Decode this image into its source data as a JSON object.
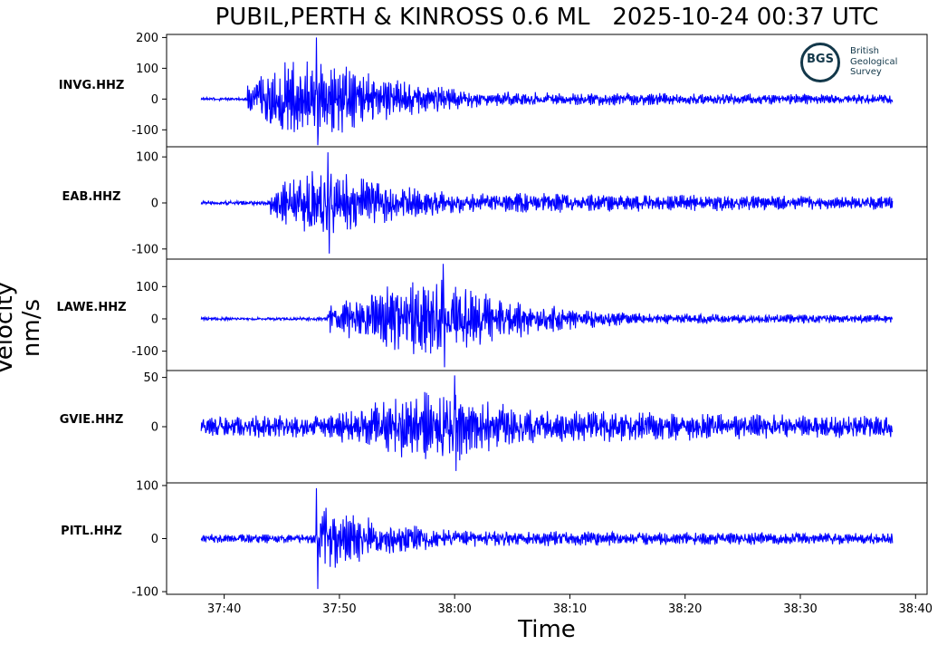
{
  "title": "PUBIL,PERTH & KINROSS 0.6 ML   2025-10-24 00:37 UTC",
  "ylabel": "Velocity nm/s",
  "xlabel": "Time",
  "logo": {
    "abbr": "BGS",
    "lines": [
      "British",
      "Geological",
      "Survey"
    ]
  },
  "colors": {
    "trace": "#0000ff",
    "axes": "#000000",
    "logo": "#13384a"
  },
  "chart_data": {
    "type": "line",
    "x_unit": "time (mm:ss)",
    "xlim": [
      "37:35",
      "38:41"
    ],
    "x_tick_labels": [
      "37:40",
      "37:50",
      "38:00",
      "38:10",
      "38:20",
      "38:30",
      "38:40"
    ],
    "trace_span": [
      "37:38",
      "38:38"
    ],
    "series": [
      {
        "name": "INVG.HHZ",
        "ylim": [
          -155,
          210
        ],
        "y_ticks": [
          200,
          100,
          0,
          -100
        ],
        "y_tick_labels": [
          "200",
          "100",
          "0",
          "-100"
        ],
        "noise_before": 4,
        "onset": "37:42",
        "peak_time": "37:48",
        "peak": 200,
        "min": -150,
        "coda": 18
      },
      {
        "name": "EAB.HHZ",
        "ylim": [
          -122,
          122
        ],
        "y_ticks": [
          100,
          0,
          -100
        ],
        "y_tick_labels": [
          "100",
          "0",
          "-100"
        ],
        "noise_before": 4,
        "onset": "37:44",
        "peak_time": "37:49",
        "peak": 110,
        "min": -110,
        "coda": 16
      },
      {
        "name": "LAWE.HHZ",
        "ylim": [
          -160,
          185
        ],
        "y_ticks": [
          100,
          0,
          -100
        ],
        "y_tick_labels": [
          "100",
          "0",
          "-100"
        ],
        "noise_before": 4,
        "onset": "37:49",
        "peak_time": "37:59",
        "peak": 170,
        "min": -150,
        "coda": 12
      },
      {
        "name": "GVIE.HHZ",
        "ylim": [
          -57,
          57
        ],
        "y_ticks": [
          50,
          0
        ],
        "y_tick_labels": [
          "50",
          "0"
        ],
        "noise_before": 9,
        "onset": "37:50",
        "peak_time": "38:00",
        "peak": 52,
        "min": -45,
        "coda": 10
      },
      {
        "name": "PITL.HHZ",
        "ylim": [
          -105,
          105
        ],
        "y_ticks": [
          100,
          0,
          -100
        ],
        "y_tick_labels": [
          "100",
          "0",
          "-100"
        ],
        "noise_before": 7,
        "onset": "37:48",
        "peak_time": "37:48",
        "peak": 95,
        "min": -95,
        "coda": 10
      }
    ]
  }
}
